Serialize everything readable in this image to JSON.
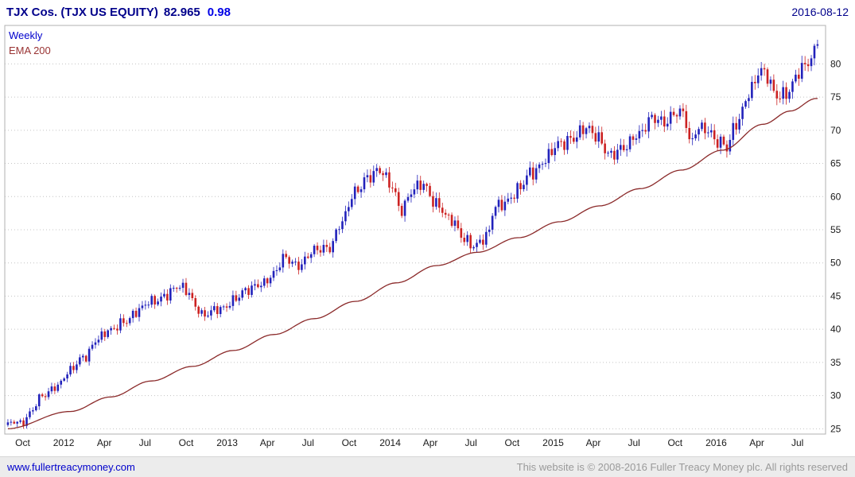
{
  "header": {
    "instrument": "TJX Cos. (TJX US EQUITY)",
    "last_price": "82.965",
    "change": "0.98",
    "date": "2016-08-12"
  },
  "legend": {
    "frequency": "Weekly",
    "overlay": "EMA 200"
  },
  "footer": {
    "site_link": "www.fullertreacymoney.com",
    "copyright": "This website is © 2008-2016 Fuller Treacy Money plc. All rights reserved"
  },
  "chart_data": {
    "type": "candlestick",
    "title": "TJX Cos. (TJX US EQUITY)",
    "frequency": "Weekly",
    "overlay": "EMA 200",
    "as_of": "2016-08-12",
    "last_close": 82.965,
    "change": 0.98,
    "ylim": [
      24.2,
      85.8
    ],
    "y_ticks": [
      25,
      30,
      35,
      40,
      45,
      50,
      55,
      60,
      65,
      70,
      75,
      80
    ],
    "x_ticks": [
      {
        "label": "Oct",
        "t": "2011-10-01"
      },
      {
        "label": "2012",
        "t": "2012-01-01"
      },
      {
        "label": "Apr",
        "t": "2012-04-01"
      },
      {
        "label": "Jul",
        "t": "2012-07-01"
      },
      {
        "label": "Oct",
        "t": "2012-10-01"
      },
      {
        "label": "2013",
        "t": "2013-01-01"
      },
      {
        "label": "Apr",
        "t": "2013-04-01"
      },
      {
        "label": "Jul",
        "t": "2013-07-01"
      },
      {
        "label": "Oct",
        "t": "2013-10-01"
      },
      {
        "label": "2014",
        "t": "2014-01-01"
      },
      {
        "label": "Apr",
        "t": "2014-04-01"
      },
      {
        "label": "Jul",
        "t": "2014-07-01"
      },
      {
        "label": "Oct",
        "t": "2014-10-01"
      },
      {
        "label": "2015",
        "t": "2015-01-01"
      },
      {
        "label": "Apr",
        "t": "2015-04-01"
      },
      {
        "label": "Jul",
        "t": "2015-07-01"
      },
      {
        "label": "Oct",
        "t": "2015-10-01"
      },
      {
        "label": "2016",
        "t": "2016-01-01"
      },
      {
        "label": "Apr",
        "t": "2016-04-01"
      },
      {
        "label": "Jul",
        "t": "2016-07-01"
      }
    ],
    "time_range": {
      "start": "2011-08-22",
      "end": "2016-09-02"
    },
    "first_week": "2011-08-29",
    "price_anchors": [
      [
        "2011-08-26",
        25.4
      ],
      [
        "2011-09-15",
        26.2
      ],
      [
        "2011-10-01",
        26.0
      ],
      [
        "2011-10-15",
        27.3
      ],
      [
        "2011-11-15",
        29.8
      ],
      [
        "2011-12-15",
        31.6
      ],
      [
        "2012-01-15",
        33.6
      ],
      [
        "2012-02-15",
        35.8
      ],
      [
        "2012-03-15",
        38.6
      ],
      [
        "2012-04-15",
        39.6
      ],
      [
        "2012-05-15",
        41.4
      ],
      [
        "2012-06-15",
        42.6
      ],
      [
        "2012-07-15",
        44.2
      ],
      [
        "2012-08-15",
        45.2
      ],
      [
        "2012-09-15",
        46.2
      ],
      [
        "2012-10-05",
        45.8
      ],
      [
        "2012-10-25",
        43.5
      ],
      [
        "2012-11-10",
        41.9
      ],
      [
        "2012-12-01",
        42.6
      ],
      [
        "2012-12-20",
        43.2
      ],
      [
        "2013-01-15",
        44.6
      ],
      [
        "2013-02-15",
        45.6
      ],
      [
        "2013-03-15",
        47.0
      ],
      [
        "2013-04-15",
        48.2
      ],
      [
        "2013-05-10",
        50.6
      ],
      [
        "2013-06-10",
        49.9
      ],
      [
        "2013-07-15",
        51.6
      ],
      [
        "2013-08-15",
        52.4
      ],
      [
        "2013-09-15",
        56.2
      ],
      [
        "2013-10-15",
        60.5
      ],
      [
        "2013-11-10",
        63.2
      ],
      [
        "2013-12-05",
        63.8
      ],
      [
        "2014-01-05",
        61.5
      ],
      [
        "2014-01-25",
        58.3
      ],
      [
        "2014-02-20",
        60.8
      ],
      [
        "2014-03-15",
        61.6
      ],
      [
        "2014-04-15",
        59.2
      ],
      [
        "2014-05-15",
        56.3
      ],
      [
        "2014-06-15",
        53.8
      ],
      [
        "2014-07-10",
        52.8
      ],
      [
        "2014-08-05",
        53.6
      ],
      [
        "2014-08-25",
        58.6
      ],
      [
        "2014-09-20",
        59.6
      ],
      [
        "2014-10-15",
        60.8
      ],
      [
        "2014-11-15",
        63.8
      ],
      [
        "2014-12-15",
        65.8
      ],
      [
        "2015-01-15",
        67.6
      ],
      [
        "2015-02-15",
        69.2
      ],
      [
        "2015-03-10",
        70.2
      ],
      [
        "2015-04-10",
        68.8
      ],
      [
        "2015-05-10",
        66.6
      ],
      [
        "2015-06-10",
        67.0
      ],
      [
        "2015-07-10",
        69.6
      ],
      [
        "2015-08-07",
        71.8
      ],
      [
        "2015-09-05",
        70.8
      ],
      [
        "2015-10-05",
        73.2
      ],
      [
        "2015-10-20",
        72.8
      ],
      [
        "2015-11-05",
        67.5
      ],
      [
        "2015-11-20",
        70.0
      ],
      [
        "2015-12-10",
        70.4
      ],
      [
        "2016-01-10",
        68.2
      ],
      [
        "2016-01-25",
        67.0
      ],
      [
        "2016-02-15",
        71.0
      ],
      [
        "2016-03-15",
        76.0
      ],
      [
        "2016-04-08",
        78.6
      ],
      [
        "2016-04-22",
        78.0
      ],
      [
        "2016-05-13",
        75.6
      ],
      [
        "2016-06-10",
        75.8
      ],
      [
        "2016-07-08",
        78.6
      ],
      [
        "2016-07-22",
        80.2
      ],
      [
        "2016-08-05",
        81.6
      ],
      [
        "2016-08-12",
        82.965
      ]
    ],
    "ema200_anchors": [
      [
        "2011-08-26",
        25.0
      ],
      [
        "2012-01-15",
        27.6
      ],
      [
        "2012-04-15",
        29.8
      ],
      [
        "2012-07-15",
        32.2
      ],
      [
        "2012-10-15",
        34.4
      ],
      [
        "2013-01-15",
        36.8
      ],
      [
        "2013-04-15",
        39.2
      ],
      [
        "2013-07-15",
        41.6
      ],
      [
        "2013-10-15",
        44.2
      ],
      [
        "2014-01-15",
        47.0
      ],
      [
        "2014-04-15",
        49.6
      ],
      [
        "2014-07-15",
        51.6
      ],
      [
        "2014-10-15",
        53.8
      ],
      [
        "2015-01-15",
        56.2
      ],
      [
        "2015-04-15",
        58.6
      ],
      [
        "2015-07-15",
        61.2
      ],
      [
        "2015-10-15",
        64.0
      ],
      [
        "2016-01-15",
        67.0
      ],
      [
        "2016-04-15",
        70.9
      ],
      [
        "2016-06-15",
        72.9
      ],
      [
        "2016-08-12",
        74.8
      ]
    ],
    "colors": {
      "up": "#2222bb",
      "down": "#cc2222",
      "ema": "#8b2a2a",
      "grid": "#c4c4c4",
      "frame": "#b0b0b0",
      "axis_text": "#1a1a1a"
    }
  }
}
